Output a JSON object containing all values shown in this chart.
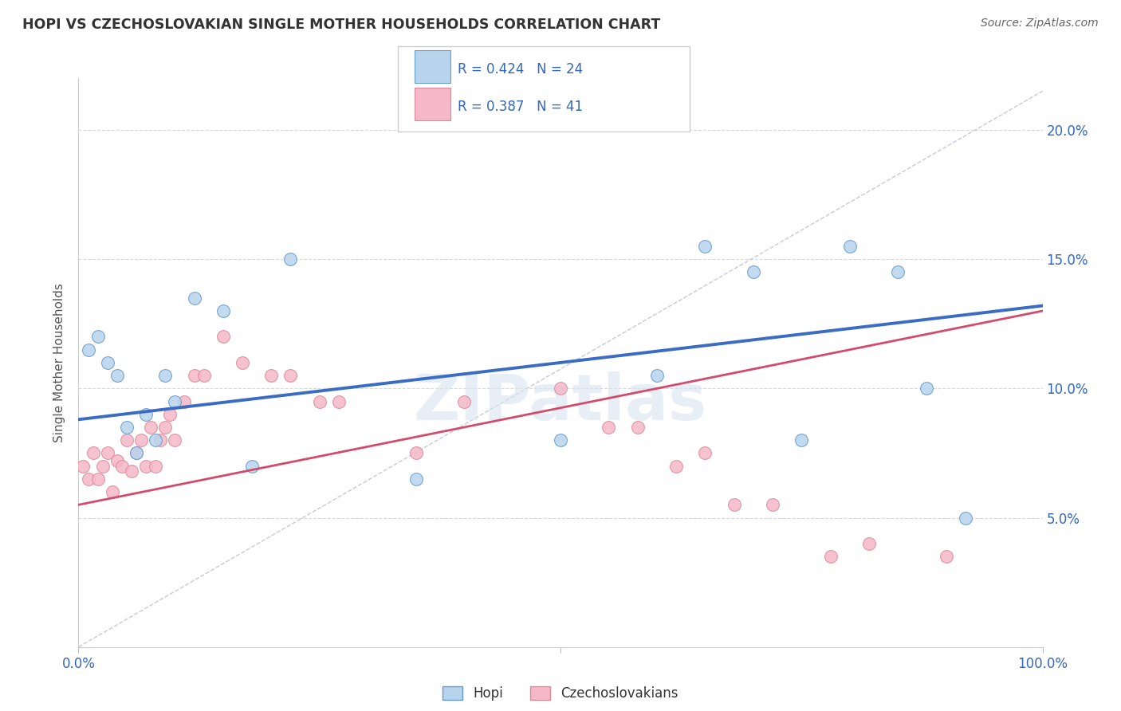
{
  "title": "HOPI VS CZECHOSLOVAKIAN SINGLE MOTHER HOUSEHOLDS CORRELATION CHART",
  "source": "Source: ZipAtlas.com",
  "ylabel": "Single Mother Households",
  "legend_r1": "R = 0.424",
  "legend_n1": "N = 24",
  "legend_r2": "R = 0.387",
  "legend_n2": "N = 41",
  "xlim": [
    0,
    100
  ],
  "ylim": [
    0,
    22
  ],
  "yticks": [
    5,
    10,
    15,
    20
  ],
  "xticks_minor": [
    0,
    20,
    40,
    60,
    80,
    100
  ],
  "background_color": "#ffffff",
  "hopi_color": "#b8d4ed",
  "czech_color": "#f5b8c8",
  "hopi_edge_color": "#6699cc",
  "czech_edge_color": "#dd8899",
  "hopi_line_color": "#3b6cc5",
  "czech_line_color": "#d44a6a",
  "ref_line_color": "#c8c8d8",
  "grid_color": "#d8d8e0",
  "watermark": "ZIPatlas",
  "hopi_points_x": [
    1,
    2,
    3,
    4,
    5,
    6,
    7,
    8,
    9,
    10,
    12,
    15,
    18,
    22,
    35,
    50,
    60,
    65,
    70,
    75,
    80,
    85,
    88,
    92
  ],
  "hopi_points_y": [
    11.5,
    12,
    11,
    10.5,
    8.5,
    7.5,
    9,
    8,
    10.5,
    9.5,
    13.5,
    13,
    7,
    15,
    6.5,
    8,
    10.5,
    15.5,
    14.5,
    8,
    15.5,
    14.5,
    10,
    5
  ],
  "czech_points_x": [
    0.5,
    1,
    1.5,
    2,
    2.5,
    3,
    3.5,
    4,
    4.5,
    5,
    5.5,
    6,
    6.5,
    7,
    7.5,
    8,
    8.5,
    9,
    9.5,
    10,
    11,
    12,
    13,
    15,
    17,
    20,
    22,
    25,
    27,
    35,
    40,
    50,
    55,
    58,
    62,
    65,
    68,
    72,
    78,
    82,
    90
  ],
  "czech_points_y": [
    7,
    6.5,
    7.5,
    6.5,
    7,
    7.5,
    6,
    7.2,
    7,
    8,
    6.8,
    7.5,
    8,
    7,
    8.5,
    7,
    8,
    8.5,
    9,
    8,
    9.5,
    10.5,
    10.5,
    12,
    11,
    10.5,
    10.5,
    9.5,
    9.5,
    7.5,
    9.5,
    10,
    8.5,
    8.5,
    7,
    7.5,
    5.5,
    5.5,
    3.5,
    4,
    3.5
  ],
  "hopi_line_x": [
    0,
    100
  ],
  "hopi_line_y": [
    8.8,
    13.2
  ],
  "czech_line_x": [
    0,
    100
  ],
  "czech_line_y": [
    5.5,
    13.0
  ],
  "ref_line_x": [
    0,
    100
  ],
  "ref_line_y": [
    0,
    21.5
  ]
}
